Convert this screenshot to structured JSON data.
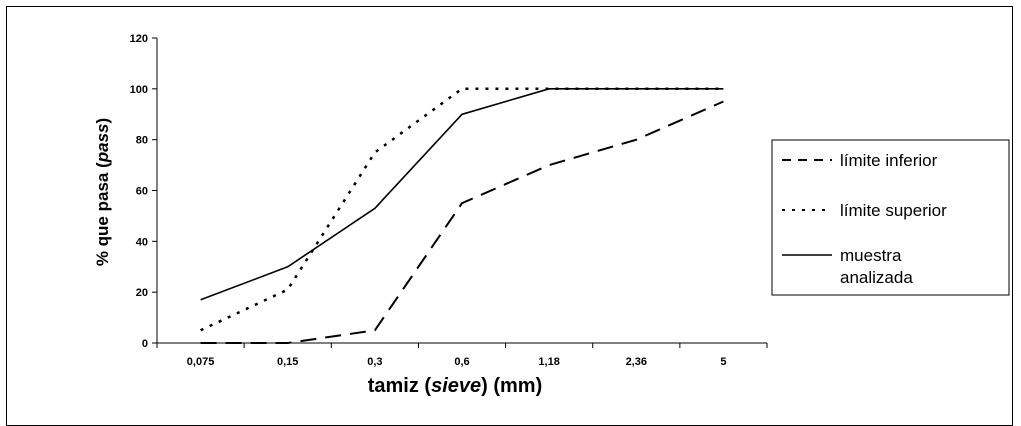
{
  "chart_data": {
    "type": "line",
    "categories": [
      "0,075",
      "0,15",
      "0,3",
      "0,6",
      "1,18",
      "2,36",
      "5"
    ],
    "ylim": [
      0,
      120
    ],
    "yticks": [
      "0",
      "20",
      "40",
      "60",
      "80",
      "100",
      "120"
    ],
    "ytick_values": [
      0,
      20,
      40,
      60,
      80,
      100,
      120
    ],
    "xlabel_parts": {
      "pre": "tamiz (",
      "italic": "sieve",
      "post": ") (mm)"
    },
    "ylabel_parts": {
      "pre": "% que pasa (",
      "italic": "pass",
      "post": ")"
    },
    "grid": false,
    "legend_position": "right",
    "series": [
      {
        "name": "límite inferior",
        "style": "dashed",
        "values": [
          0,
          0,
          5,
          55,
          70,
          80,
          95
        ]
      },
      {
        "name": "límite superior",
        "style": "dotted",
        "values": [
          5,
          21,
          75,
          100,
          100,
          100,
          100
        ]
      },
      {
        "name_lines": [
          "muestra",
          "analizada"
        ],
        "style": "solid",
        "values": [
          17,
          30,
          53,
          90,
          100,
          100,
          100
        ]
      }
    ],
    "colors": {
      "line": "#000000",
      "background": "#ffffff"
    }
  }
}
